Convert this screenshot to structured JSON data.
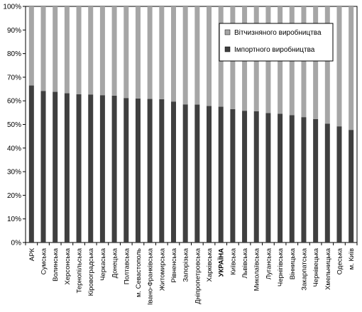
{
  "chart_data": {
    "type": "bar",
    "stacked": true,
    "percent_stacked": true,
    "categories": [
      "АРК",
      "Сумська",
      "Волинська",
      "Херсонська",
      "Тернопільська",
      "Кіровоградська",
      "Черкаська",
      "Донецька",
      "Полтавська",
      "м. Севастополь",
      "Івано-Франківська",
      "Житомирська",
      "Рівненська",
      "Запорізька",
      "Дніпропетровська",
      "Харківська",
      "УКРАЇНА",
      "Київська",
      "Львівська",
      "Миколаївська",
      "Луганська",
      "Чернігівська",
      "Вінницька",
      "Закарпатська",
      "Чернівецька",
      "Хмельницька",
      "Одеська",
      "м. Київ"
    ],
    "series": [
      {
        "name": "Імпортного виробництва",
        "color": "#3f3f3f",
        "values": [
          66.5,
          64.2,
          63.8,
          63.2,
          62.8,
          62.7,
          62.4,
          62.2,
          61.2,
          61.0,
          60.8,
          60.7,
          59.7,
          58.5,
          58.4,
          57.8,
          57.5,
          56.5,
          55.8,
          55.6,
          54.8,
          54.5,
          53.9,
          53.1,
          52.3,
          50.3,
          49.2,
          47.7
        ]
      },
      {
        "name": "Вітчизняного виробництва",
        "color": "#a6a6a6",
        "values": [
          33.5,
          35.8,
          36.2,
          36.8,
          37.2,
          37.3,
          37.6,
          37.8,
          38.8,
          39.0,
          39.2,
          39.3,
          40.3,
          41.5,
          41.6,
          42.2,
          42.5,
          43.5,
          44.2,
          44.4,
          45.2,
          45.5,
          46.1,
          46.9,
          47.7,
          49.7,
          50.8,
          52.3
        ]
      }
    ],
    "yticks": [
      "0%",
      "10%",
      "20%",
      "30%",
      "40%",
      "50%",
      "60%",
      "70%",
      "80%",
      "90%",
      "100%"
    ],
    "ylim": [
      0,
      100
    ],
    "bold_category": "УКРАЇНА",
    "legend_position": "top-right",
    "grid": false
  }
}
